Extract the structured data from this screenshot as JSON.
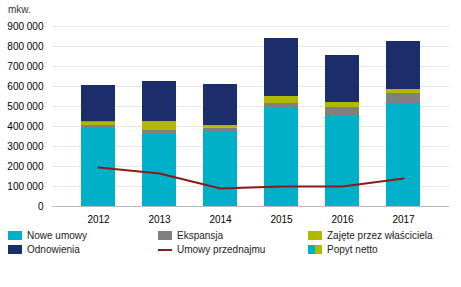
{
  "chart_data": {
    "type": "bar",
    "stacked": true,
    "ylabel": "mkw.",
    "categories": [
      "2012",
      "2013",
      "2014",
      "2015",
      "2016",
      "2017"
    ],
    "series": [
      {
        "name": "Nowe umowy",
        "type": "bar",
        "color": "#00b0c8",
        "values": [
          390000,
          360000,
          375000,
          490000,
          450000,
          515000
        ]
      },
      {
        "name": "Ekspansja",
        "type": "bar",
        "color": "#808080",
        "values": [
          15000,
          20000,
          18000,
          25000,
          45000,
          50000
        ]
      },
      {
        "name": "Zajęte przez właściciela",
        "type": "bar",
        "color": "#b0b800",
        "values": [
          18000,
          45000,
          12000,
          35000,
          25000,
          20000
        ]
      },
      {
        "name": "Odnowienia",
        "type": "bar",
        "color": "#1c2d6b",
        "values": [
          182000,
          200000,
          205000,
          290000,
          235000,
          240000
        ]
      },
      {
        "name": "Umowy przednajmu",
        "type": "line",
        "color": "#8b1a1a",
        "values": [
          195000,
          165000,
          90000,
          100000,
          100000,
          140000
        ]
      },
      {
        "name": "Popyt netto",
        "type": "bar",
        "colors": [
          "#00b0c8",
          "#b0b800"
        ],
        "values": [
          0,
          0,
          0,
          0,
          0,
          0
        ]
      }
    ],
    "ylim": [
      0,
      900000
    ],
    "yticks": [
      0,
      {
        "value": 100000,
        "label": "100 000"
      },
      {
        "value": 200000,
        "label": "200 000"
      },
      {
        "value": 300000,
        "label": "300 000"
      },
      {
        "value": 400000,
        "label": "400 000"
      },
      {
        "value": 500000,
        "label": "500 000"
      },
      {
        "value": 600000,
        "label": "600 000"
      },
      {
        "value": 700000,
        "label": "700 000"
      },
      {
        "value": 800000,
        "label": "800 000"
      },
      {
        "value": 900000,
        "label": "900 000"
      }
    ],
    "grid": true,
    "legend": "bottom"
  }
}
